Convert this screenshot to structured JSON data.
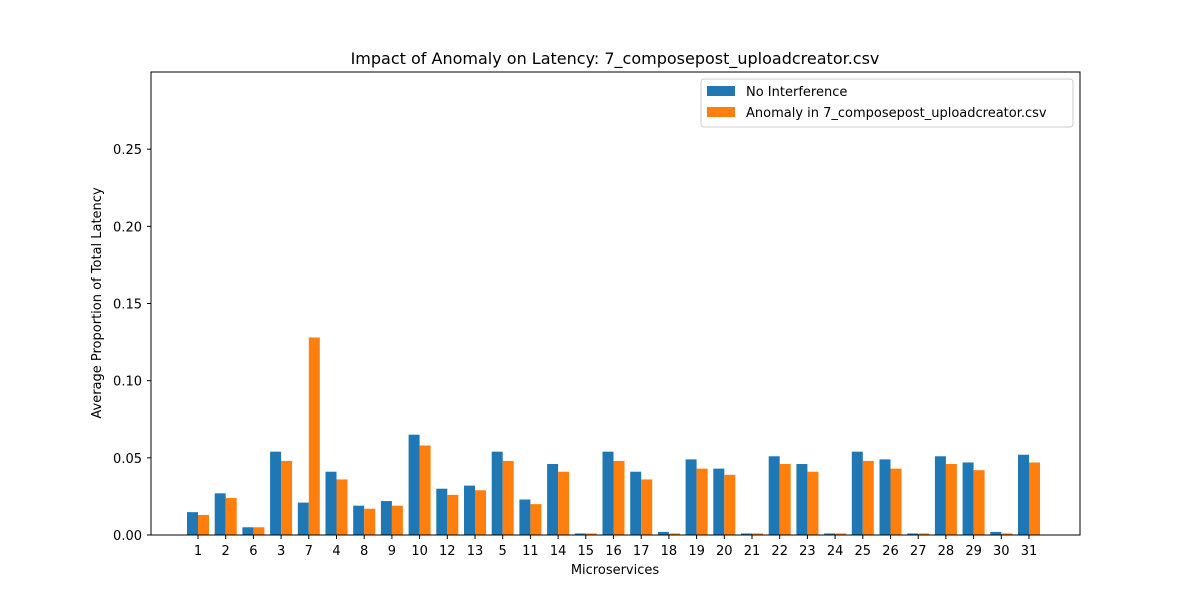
{
  "chart_data": {
    "type": "bar",
    "title": "Impact of Anomaly on Latency: 7_composepost_uploadcreator.csv",
    "xlabel": "Microservices",
    "ylabel": "Average Proportion of Total Latency",
    "categories": [
      "1",
      "2",
      "6",
      "3",
      "7",
      "4",
      "8",
      "9",
      "10",
      "12",
      "13",
      "5",
      "11",
      "14",
      "15",
      "16",
      "17",
      "18",
      "19",
      "20",
      "21",
      "22",
      "23",
      "24",
      "25",
      "26",
      "27",
      "28",
      "29",
      "30",
      "31"
    ],
    "series": [
      {
        "name": "No Interference",
        "color": "#1f77b4",
        "values": [
          0.0148,
          0.027,
          0.005,
          0.054,
          0.021,
          0.041,
          0.019,
          0.022,
          0.065,
          0.03,
          0.032,
          0.054,
          0.023,
          0.046,
          0.001,
          0.054,
          0.041,
          0.002,
          0.049,
          0.043,
          0.001,
          0.051,
          0.046,
          0.001,
          0.054,
          0.049,
          0.001,
          0.051,
          0.047,
          0.002,
          0.052
        ]
      },
      {
        "name": "Anomaly in 7_composepost_uploadcreator.csv",
        "color": "#ff7f0e",
        "values": [
          0.013,
          0.024,
          0.005,
          0.048,
          0.128,
          0.036,
          0.017,
          0.019,
          0.058,
          0.026,
          0.029,
          0.048,
          0.02,
          0.041,
          0.001,
          0.048,
          0.036,
          0.001,
          0.043,
          0.039,
          0.001,
          0.046,
          0.041,
          0.001,
          0.048,
          0.043,
          0.001,
          0.046,
          0.042,
          0.001,
          0.047
        ]
      }
    ],
    "ylim": [
      0,
      0.3
    ],
    "yticks": [
      "0.00",
      "0.05",
      "0.10",
      "0.15",
      "0.20",
      "0.25"
    ],
    "legend_position": "top-right",
    "grid": false
  }
}
